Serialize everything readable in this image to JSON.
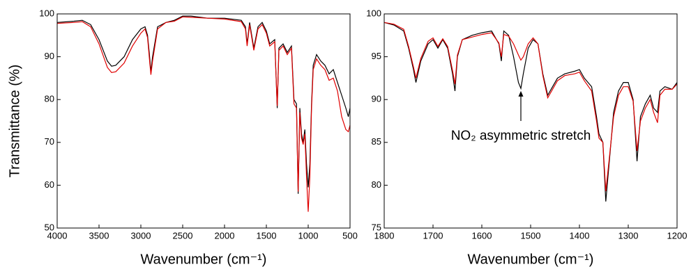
{
  "chart_data": [
    {
      "type": "line",
      "ylabel": "Transmittance (%)",
      "xlabel": "Wavenumber (cm⁻¹)",
      "xlim": [
        4000,
        500
      ],
      "xticks": [
        4000,
        3500,
        3000,
        2500,
        2000,
        1500,
        1000,
        500
      ],
      "ylim": [
        50,
        100
      ],
      "yticks": [
        50,
        60,
        70,
        80,
        90,
        100
      ],
      "x": [
        4000,
        3800,
        3700,
        3600,
        3500,
        3400,
        3350,
        3300,
        3200,
        3100,
        3000,
        2950,
        2920,
        2900,
        2880,
        2860,
        2800,
        2700,
        2600,
        2500,
        2400,
        2200,
        2000,
        1800,
        1750,
        1730,
        1700,
        1650,
        1600,
        1550,
        1500,
        1460,
        1400,
        1370,
        1350,
        1300,
        1250,
        1200,
        1170,
        1140,
        1120,
        1100,
        1080,
        1060,
        1040,
        1020,
        1000,
        980,
        960,
        940,
        900,
        850,
        800,
        750,
        700,
        650,
        600,
        550,
        520,
        500
      ],
      "series": [
        {
          "color": "#000000",
          "values": [
            98,
            98.3,
            98.5,
            97.5,
            94,
            89,
            87.8,
            88,
            90,
            94,
            96.5,
            97,
            95,
            91,
            86.5,
            90,
            97,
            98,
            98.5,
            99.5,
            99.5,
            99,
            99,
            98.5,
            97,
            93,
            98,
            92,
            97,
            98,
            96,
            93,
            94,
            78,
            92,
            93,
            91,
            92.5,
            80,
            79,
            58,
            78,
            72,
            70,
            73,
            65,
            59.5,
            65,
            79,
            88,
            90.5,
            89,
            88,
            86,
            87,
            84,
            81,
            78,
            76,
            78
          ]
        },
        {
          "color": "#e00000",
          "values": [
            97.8,
            98,
            98.2,
            97,
            93,
            87.5,
            86.3,
            86.5,
            88.5,
            92.5,
            95.5,
            96.5,
            94.5,
            90,
            85.8,
            89,
            96.5,
            98,
            98.3,
            99.3,
            99.2,
            99,
            98.8,
            98.2,
            96.5,
            92.5,
            97.5,
            91.5,
            96.5,
            97.5,
            95.5,
            92.5,
            93.5,
            78.5,
            91.5,
            92.5,
            90.5,
            92,
            79,
            78,
            58.5,
            77,
            71,
            69.5,
            72,
            62,
            53.8,
            62,
            78,
            87,
            89.5,
            88,
            87,
            84.5,
            85,
            82,
            76,
            73,
            72.5,
            74
          ]
        }
      ]
    },
    {
      "type": "line",
      "xlabel": "Wavenumber (cm⁻¹)",
      "xlim": [
        1800,
        1200
      ],
      "xticks": [
        1800,
        1700,
        1600,
        1500,
        1400,
        1300,
        1200
      ],
      "ylim": [
        75,
        100
      ],
      "yticks": [
        75,
        80,
        85,
        90,
        95,
        100
      ],
      "annotation": {
        "text": "NO₂ asymmetric stretch",
        "x": 1520,
        "y_from": 87.5,
        "y_to": 91
      },
      "x": [
        1800,
        1780,
        1760,
        1750,
        1740,
        1735,
        1725,
        1710,
        1700,
        1690,
        1680,
        1670,
        1660,
        1655,
        1650,
        1640,
        1620,
        1600,
        1580,
        1565,
        1560,
        1555,
        1545,
        1535,
        1525,
        1520,
        1515,
        1505,
        1495,
        1485,
        1475,
        1465,
        1455,
        1445,
        1430,
        1410,
        1400,
        1390,
        1375,
        1365,
        1360,
        1352,
        1346,
        1340,
        1330,
        1320,
        1310,
        1300,
        1290,
        1282,
        1275,
        1265,
        1255,
        1248,
        1240,
        1235,
        1225,
        1210,
        1200
      ],
      "series": [
        {
          "color": "#000000",
          "values": [
            99,
            98.7,
            98,
            96,
            93.5,
            92,
            94.5,
            96.5,
            97,
            96,
            97,
            96,
            93,
            91,
            95,
            97,
            97.5,
            97.8,
            98,
            96.5,
            94.5,
            98,
            97.5,
            95,
            92,
            91.3,
            93,
            96,
            97,
            96.5,
            93,
            90.5,
            91.5,
            92.5,
            93,
            93.3,
            93.5,
            92.5,
            91.5,
            88,
            86,
            85,
            78.1,
            82,
            88.5,
            91,
            92,
            92,
            90,
            82.8,
            88,
            89.5,
            90.5,
            89,
            88.5,
            91,
            91.5,
            91.2,
            92
          ]
        },
        {
          "color": "#e00000",
          "values": [
            99,
            98.8,
            98.2,
            96.2,
            93.8,
            92.5,
            94.8,
            96.8,
            97.2,
            96.2,
            97.1,
            96.2,
            93.4,
            91.8,
            95.2,
            97,
            97.3,
            97.6,
            97.8,
            96.6,
            95,
            97.6,
            97.4,
            96.5,
            95.2,
            94.6,
            95,
            96.5,
            97.2,
            96.5,
            92.8,
            90.2,
            91.2,
            92.2,
            92.8,
            93,
            93.2,
            92.2,
            91,
            87.5,
            85.5,
            85,
            79.3,
            82.5,
            88,
            90.5,
            91.5,
            91.5,
            89.8,
            84,
            87.5,
            89,
            90,
            88.5,
            87.3,
            90.5,
            91.2,
            91.2,
            91.8
          ]
        }
      ]
    }
  ]
}
